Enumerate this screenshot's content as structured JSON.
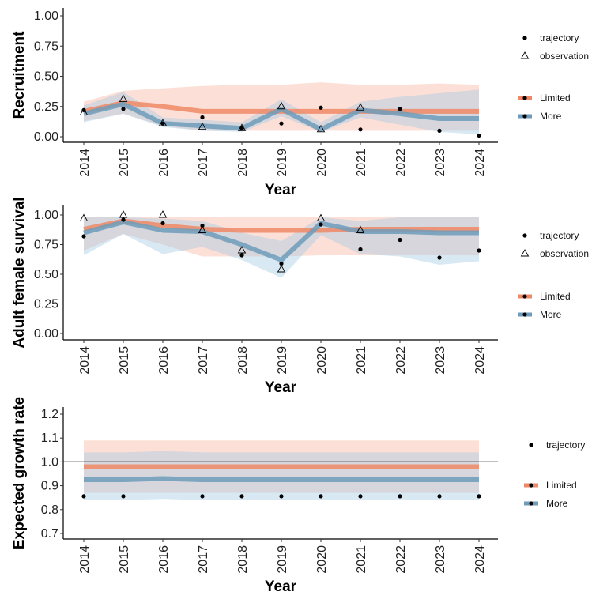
{
  "colors": {
    "Limited": "#EE8866",
    "More": "#6E9CBA",
    "Limited_band": "#F6A58C",
    "More_band": "#9EC8E4"
  },
  "chart_data": [
    {
      "type": "line",
      "ylabel": "Recruitment",
      "xlabel": "Year",
      "x": [
        2014,
        2015,
        2016,
        2017,
        2018,
        2019,
        2020,
        2021,
        2022,
        2023,
        2024
      ],
      "ylim": [
        0,
        1
      ],
      "yticks": [
        "0.00",
        "0.25",
        "0.50",
        "0.75",
        "1.00"
      ],
      "grid": false,
      "legend": "right",
      "points": {
        "trajectory": [
          0.22,
          0.23,
          0.11,
          0.16,
          0.07,
          0.11,
          0.24,
          0.06,
          0.23,
          0.05,
          0.01
        ],
        "observation": [
          0.2,
          0.31,
          0.11,
          0.08,
          0.07,
          0.25,
          0.06,
          0.24,
          null,
          null,
          null
        ]
      },
      "series": [
        {
          "name": "Limited",
          "values": [
            0.21,
            0.28,
            0.25,
            0.21,
            0.21,
            0.21,
            0.21,
            0.21,
            0.21,
            0.21,
            0.21
          ],
          "lower": [
            0.13,
            0.19,
            0.09,
            0.05,
            0.05,
            0.05,
            0.05,
            0.05,
            0.05,
            0.05,
            0.05
          ],
          "upper": [
            0.29,
            0.38,
            0.4,
            0.42,
            0.43,
            0.43,
            0.45,
            0.43,
            0.43,
            0.44,
            0.43
          ]
        },
        {
          "name": "More",
          "values": [
            0.19,
            0.27,
            0.11,
            0.09,
            0.07,
            0.23,
            0.06,
            0.22,
            0.19,
            0.15,
            0.15
          ],
          "lower": [
            0.12,
            0.19,
            0.08,
            0.05,
            0.04,
            0.17,
            0.04,
            0.16,
            0.1,
            0.04,
            0.02
          ],
          "upper": [
            0.26,
            0.37,
            0.16,
            0.14,
            0.12,
            0.31,
            0.12,
            0.29,
            0.33,
            0.36,
            0.39
          ]
        }
      ],
      "legend_labels": {
        "points": [
          "trajectory",
          "observation"
        ],
        "lines": [
          "Limited",
          "More"
        ]
      }
    },
    {
      "type": "line",
      "ylabel": "Adult female survival",
      "xlabel": "Year",
      "x": [
        2014,
        2015,
        2016,
        2017,
        2018,
        2019,
        2020,
        2021,
        2022,
        2023,
        2024
      ],
      "ylim": [
        0,
        1
      ],
      "yticks": [
        "0.00",
        "0.25",
        "0.50",
        "0.75",
        "1.00"
      ],
      "grid": false,
      "legend": "right",
      "points": {
        "trajectory": [
          0.82,
          0.96,
          0.93,
          0.91,
          0.66,
          0.59,
          0.92,
          0.71,
          0.79,
          0.64,
          0.7
        ],
        "observation": [
          0.97,
          1.0,
          1.0,
          0.87,
          0.7,
          0.54,
          0.97,
          0.87,
          null,
          null,
          null
        ]
      },
      "series": [
        {
          "name": "Limited",
          "values": [
            0.88,
            0.95,
            0.91,
            0.88,
            0.87,
            0.87,
            0.87,
            0.88,
            0.88,
            0.88,
            0.88
          ],
          "lower": [
            0.7,
            0.84,
            0.75,
            0.65,
            0.65,
            0.65,
            0.66,
            0.66,
            0.66,
            0.66,
            0.66
          ],
          "upper": [
            0.98,
            0.98,
            0.98,
            0.98,
            0.98,
            0.98,
            0.98,
            0.98,
            0.98,
            0.98,
            0.98
          ]
        },
        {
          "name": "More",
          "values": [
            0.85,
            0.94,
            0.87,
            0.86,
            0.75,
            0.62,
            0.93,
            0.86,
            0.86,
            0.85,
            0.85
          ],
          "lower": [
            0.66,
            0.84,
            0.67,
            0.73,
            0.62,
            0.47,
            0.83,
            0.67,
            0.65,
            0.58,
            0.61
          ],
          "upper": [
            0.98,
            0.98,
            0.97,
            0.95,
            0.85,
            0.78,
            0.98,
            0.95,
            0.98,
            0.98,
            0.98
          ]
        }
      ],
      "legend_labels": {
        "points": [
          "trajectory",
          "observation"
        ],
        "lines": [
          "Limited",
          "More"
        ]
      }
    },
    {
      "type": "line",
      "ylabel": "Expected growth rate",
      "xlabel": "Year",
      "x": [
        2014,
        2015,
        2016,
        2017,
        2018,
        2019,
        2020,
        2021,
        2022,
        2023,
        2024
      ],
      "ylim": [
        0.665,
        1.22
      ],
      "yticks": [
        "0.7",
        "0.8",
        "0.9",
        "1.0",
        "1.1",
        "1.2"
      ],
      "reference_line": 1.0,
      "grid": false,
      "legend": "right",
      "points": {
        "trajectory": [
          0.856,
          0.856,
          null,
          0.856,
          0.856,
          0.856,
          0.856,
          0.856,
          0.856,
          0.856,
          0.856
        ]
      },
      "series": [
        {
          "name": "Limited",
          "values": [
            0.98,
            0.98,
            0.98,
            0.98,
            0.98,
            0.98,
            0.98,
            0.98,
            0.98,
            0.98,
            0.98
          ],
          "lower": [
            0.87,
            0.87,
            0.87,
            0.87,
            0.87,
            0.87,
            0.87,
            0.87,
            0.87,
            0.87,
            0.87
          ],
          "upper": [
            1.09,
            1.09,
            1.09,
            1.09,
            1.09,
            1.09,
            1.09,
            1.09,
            1.09,
            1.09,
            1.09
          ]
        },
        {
          "name": "More",
          "values": [
            0.925,
            0.925,
            0.93,
            0.925,
            0.925,
            0.925,
            0.925,
            0.925,
            0.925,
            0.925,
            0.925
          ],
          "lower": [
            0.84,
            0.84,
            0.845,
            0.84,
            0.84,
            0.84,
            0.84,
            0.84,
            0.84,
            0.84,
            0.84
          ],
          "upper": [
            1.04,
            1.04,
            1.045,
            1.04,
            1.04,
            1.04,
            1.04,
            1.04,
            1.04,
            1.04,
            1.04
          ]
        }
      ],
      "legend_labels": {
        "points": [
          "trajectory"
        ],
        "lines": [
          "Limited",
          "More"
        ]
      }
    }
  ]
}
